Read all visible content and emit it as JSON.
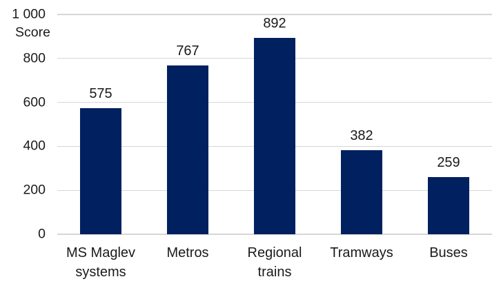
{
  "chart_data": {
    "type": "bar",
    "title": "",
    "xlabel": "",
    "ylabel": "Score",
    "categories": [
      "MS Maglev systems",
      "Metros",
      "Regional trains",
      "Tramways",
      "Buses"
    ],
    "categories_display": [
      [
        "MS Maglev",
        "systems"
      ],
      [
        "Metros"
      ],
      [
        "Regional",
        "trains"
      ],
      [
        "Tramways"
      ],
      [
        "Buses"
      ]
    ],
    "values": [
      575,
      767,
      892,
      382,
      259
    ],
    "value_labels": [
      "575",
      "767",
      "892",
      "382",
      "259"
    ],
    "ylim": [
      0,
      1000
    ],
    "yticks": [
      0,
      200,
      400,
      600,
      800,
      1000
    ],
    "ytick_labels": [
      "0",
      "200",
      "400",
      "600",
      "800",
      "1 000"
    ],
    "grid": true,
    "legend": false,
    "colors": {
      "bar": "#002060",
      "gridline": "#D6D6D6",
      "axis_line": "#D6D6D6",
      "text": "#1A1A1A"
    }
  }
}
